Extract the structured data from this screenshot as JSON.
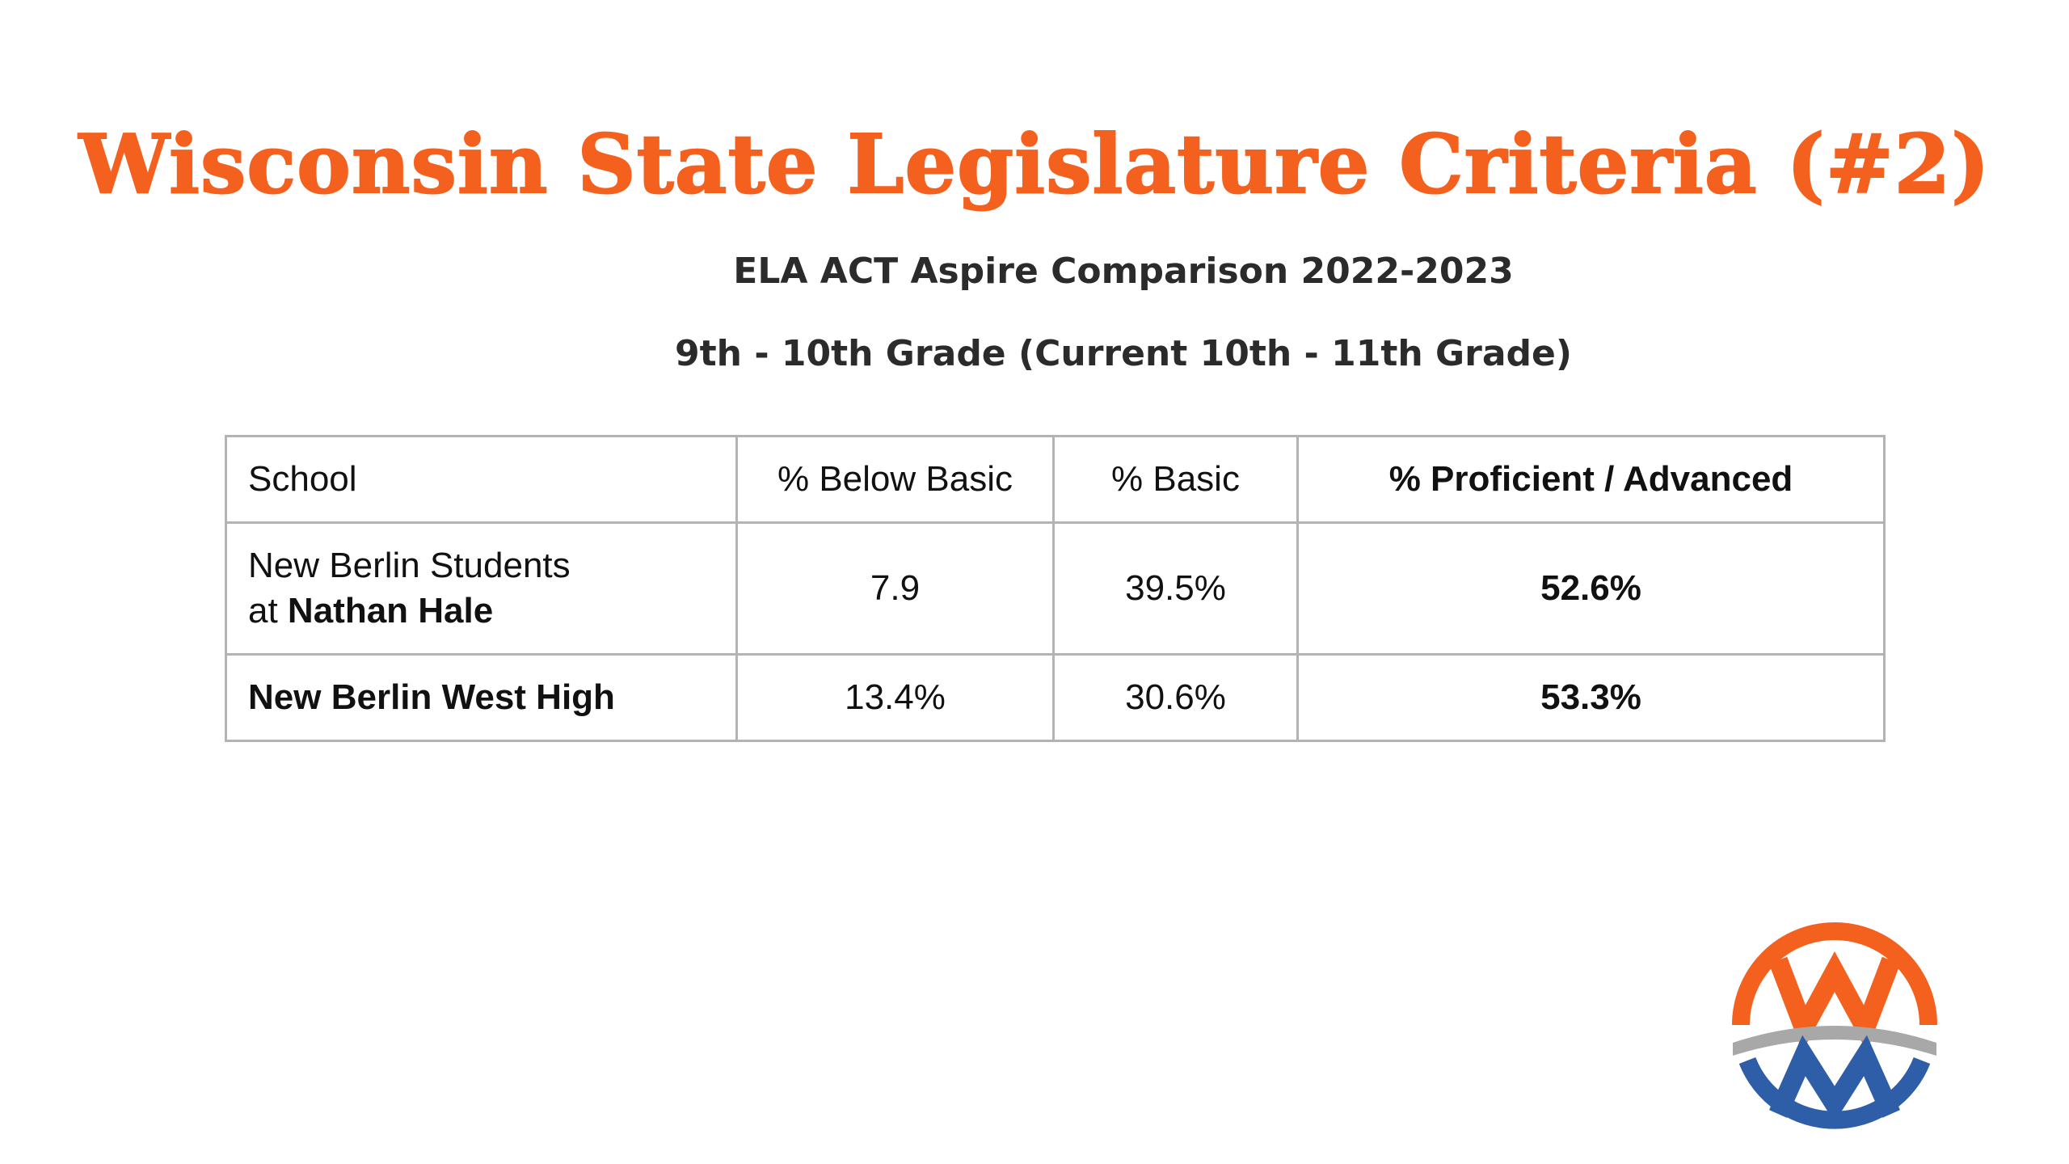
{
  "title": "Wisconsin State Legislature Criteria (#2)",
  "subtitle_1": "ELA ACT Aspire Comparison 2022-2023",
  "subtitle_2": "9th - 10th Grade (Current 10th - 11th Grade)",
  "table": {
    "headers": {
      "school": "School",
      "below_basic": "% Below Basic",
      "basic": "% Basic",
      "proficient_advanced": "% Proficient / Advanced"
    },
    "rows": [
      {
        "school_line1": "New Berlin Students",
        "school_line2_prefix": "at ",
        "school_line2_bold": "Nathan Hale",
        "below_basic": "7.9",
        "basic": "39.5%",
        "proficient_advanced": "52.6%"
      },
      {
        "school": "New Berlin West High",
        "below_basic": "13.4%",
        "basic": "30.6%",
        "proficient_advanced": "53.3%"
      }
    ]
  },
  "colors": {
    "title": "#f4611f",
    "logo_orange": "#f4611f",
    "logo_blue": "#2e5ea8",
    "logo_gray": "#a8a8a8"
  },
  "logo_icon": "w-m-circle-logo"
}
